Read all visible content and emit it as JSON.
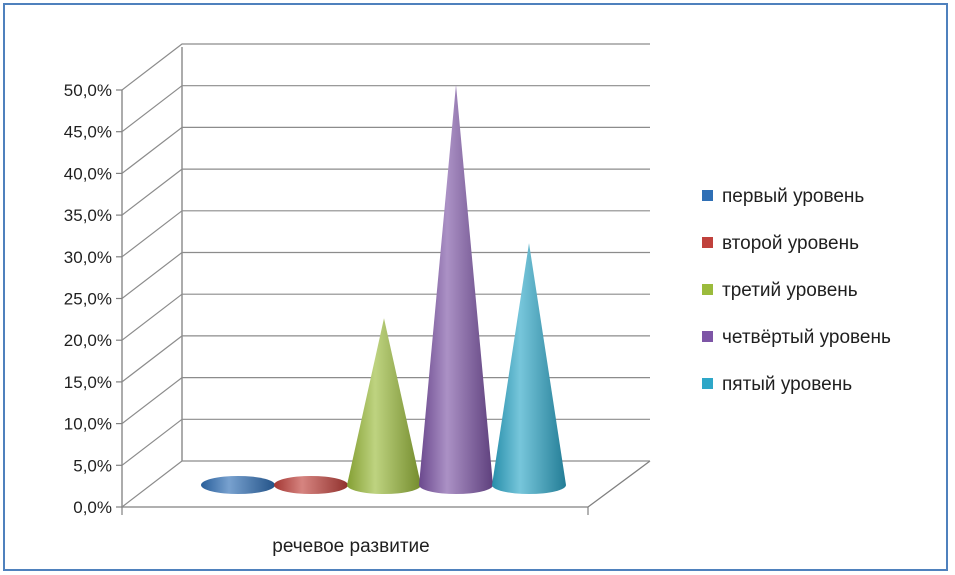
{
  "chart_data": {
    "type": "bar",
    "shape": "cone",
    "three_d": true,
    "categories": [
      "речевое развитие"
    ],
    "series": [
      {
        "name": "первый уровень",
        "values": [
          0.0
        ],
        "color": "#2f6fb5"
      },
      {
        "name": "второй уровень",
        "values": [
          0.0
        ],
        "color": "#c0413c"
      },
      {
        "name": "третий уровень",
        "values": [
          20.0
        ],
        "color": "#9bbb3c"
      },
      {
        "name": "четвёртый уровень",
        "values": [
          48.0
        ],
        "color": "#7d55a6"
      },
      {
        "name": "пятый уровень",
        "values": [
          29.0
        ],
        "color": "#2ea7c8"
      }
    ],
    "ylim": [
      0,
      50
    ],
    "ytick_labels": [
      "0,0%",
      "5,0%",
      "10,0%",
      "15,0%",
      "20,0%",
      "25,0%",
      "30,0%",
      "35,0%",
      "40,0%",
      "45,0%",
      "50,0%"
    ],
    "grid": true,
    "legend_position": "right",
    "title": "",
    "xlabel": "",
    "ylabel": ""
  }
}
